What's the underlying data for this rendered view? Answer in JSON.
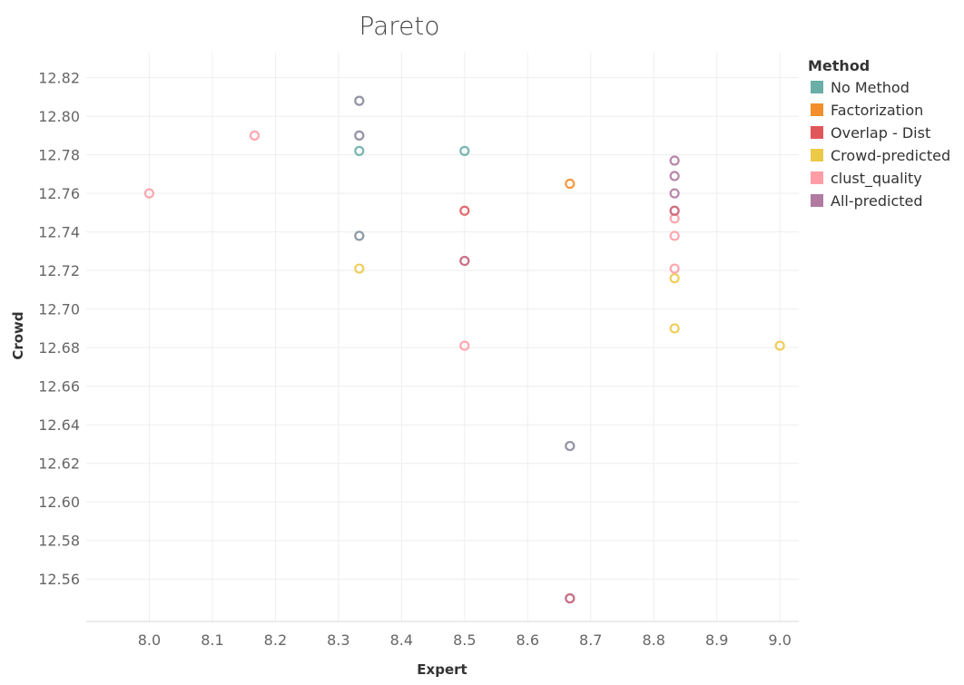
{
  "chart_data": {
    "type": "scatter",
    "title": "Pareto",
    "xlabel": "Expert",
    "ylabel": "Crowd",
    "xlim": [
      7.9,
      9.03
    ],
    "ylim": [
      12.538,
      12.833
    ],
    "x_ticks": [
      "8.0",
      "8.1",
      "8.2",
      "8.3",
      "8.4",
      "8.5",
      "8.6",
      "8.7",
      "8.8",
      "8.9",
      "9.0"
    ],
    "y_ticks": [
      "12.56",
      "12.58",
      "12.60",
      "12.62",
      "12.64",
      "12.66",
      "12.68",
      "12.70",
      "12.72",
      "12.74",
      "12.76",
      "12.78",
      "12.80",
      "12.82"
    ],
    "grid": true,
    "legend": {
      "title": "Method",
      "position": "top-right"
    },
    "series": [
      {
        "name": "No Method",
        "color": "#6aaea6",
        "points": [
          {
            "x": 8.333,
            "y": 12.808
          },
          {
            "x": 8.333,
            "y": 12.79
          },
          {
            "x": 8.333,
            "y": 12.782
          },
          {
            "x": 8.5,
            "y": 12.782
          },
          {
            "x": 8.667,
            "y": 12.629
          }
        ]
      },
      {
        "name": "Factorization",
        "color": "#f28e2b",
        "points": [
          {
            "x": 8.667,
            "y": 12.765
          }
        ]
      },
      {
        "name": "Overlap - Dist",
        "color": "#e15759",
        "points": [
          {
            "x": 8.5,
            "y": 12.751
          },
          {
            "x": 8.5,
            "y": 12.725
          },
          {
            "x": 8.667,
            "y": 12.55
          }
        ]
      },
      {
        "name": "Crowd-predicted",
        "color": "#edc948",
        "points": [
          {
            "x": 8.333,
            "y": 12.721
          },
          {
            "x": 8.833,
            "y": 12.716
          },
          {
            "x": 8.833,
            "y": 12.69
          },
          {
            "x": 9.0,
            "y": 12.681
          }
        ]
      },
      {
        "name": "clust_quality",
        "color": "#ff9da7",
        "points": [
          {
            "x": 8.0,
            "y": 12.76
          },
          {
            "x": 8.167,
            "y": 12.79
          },
          {
            "x": 8.5,
            "y": 12.681
          },
          {
            "x": 8.833,
            "y": 12.747
          },
          {
            "x": 8.833,
            "y": 12.738
          },
          {
            "x": 8.833,
            "y": 12.721
          }
        ]
      },
      {
        "name": "All-predicted",
        "color": "#b07aa1",
        "points": [
          {
            "x": 8.333,
            "y": 12.738
          },
          {
            "x": 8.833,
            "y": 12.777
          },
          {
            "x": 8.833,
            "y": 12.769
          },
          {
            "x": 8.833,
            "y": 12.76
          },
          {
            "x": 8.833,
            "y": 12.751
          }
        ]
      }
    ]
  },
  "overlays": [
    {
      "x": 8.333,
      "y": 12.808,
      "color": "#b07aa1"
    },
    {
      "x": 8.333,
      "y": 12.79,
      "color": "#b07aa1"
    },
    {
      "x": 8.333,
      "y": 12.738,
      "color": "#6aaea6"
    },
    {
      "x": 8.667,
      "y": 12.629,
      "color": "#b07aa1"
    },
    {
      "x": 8.5,
      "y": 12.725,
      "color": "#b07aa1"
    },
    {
      "x": 8.667,
      "y": 12.55,
      "color": "#b07aa1"
    },
    {
      "x": 8.833,
      "y": 12.751,
      "color": "#e15759"
    }
  ]
}
